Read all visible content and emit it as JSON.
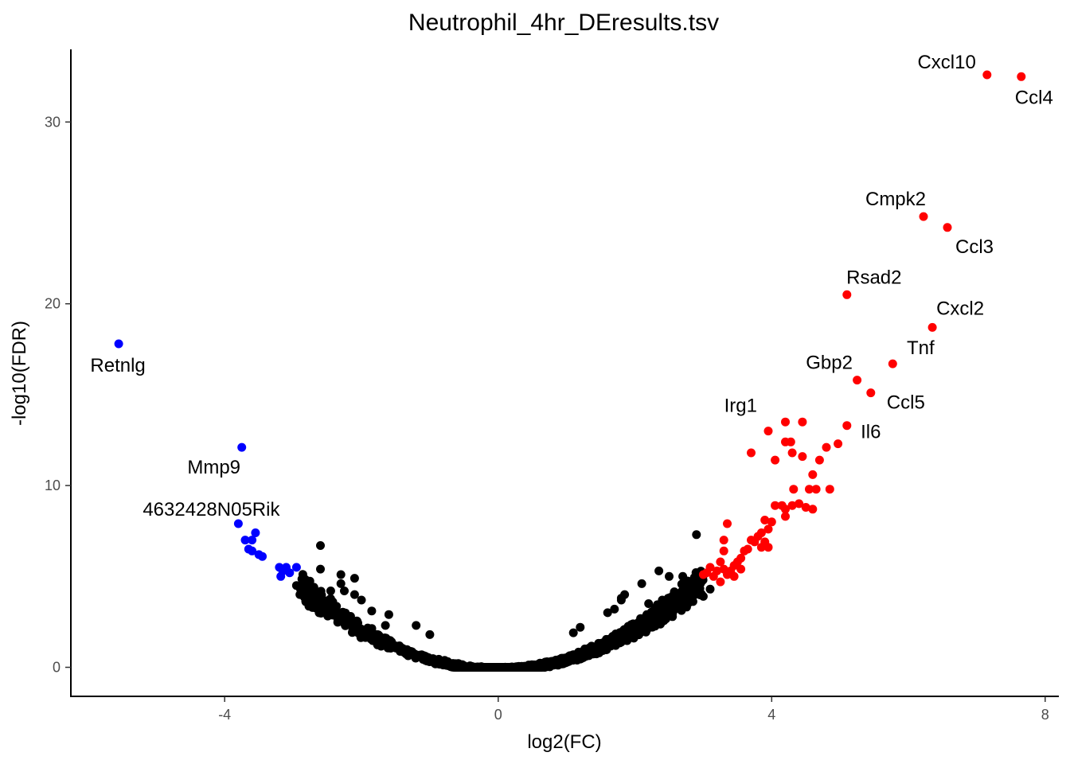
{
  "chart_data": {
    "type": "scatter",
    "title": "Neutrophil_4hr_DEresults.tsv",
    "xlabel": "log2(FC)",
    "ylabel": "-log10(FDR)",
    "xlim": [
      -6.25,
      8.2
    ],
    "ylim": [
      -1.6,
      34.0
    ],
    "x_ticks": [
      -4,
      0,
      4,
      8
    ],
    "y_ticks": [
      0,
      10,
      20,
      30
    ],
    "grid": false,
    "legend": "none",
    "colors": {
      "up": "#ff0000",
      "down": "#0000ff",
      "ns": "#000000"
    },
    "labeled_genes": [
      {
        "name": "Cxcl10",
        "x": 7.15,
        "y": 32.6,
        "color": "up"
      },
      {
        "name": "Ccl4",
        "x": 7.65,
        "y": 32.5,
        "color": "up"
      },
      {
        "name": "Cmpk2",
        "x": 6.22,
        "y": 24.8,
        "color": "up"
      },
      {
        "name": "Ccl3",
        "x": 6.57,
        "y": 24.2,
        "color": "up"
      },
      {
        "name": "Rsad2",
        "x": 5.1,
        "y": 20.5,
        "color": "up"
      },
      {
        "name": "Cxcl2",
        "x": 6.35,
        "y": 18.7,
        "color": "up"
      },
      {
        "name": "Tnf",
        "x": 5.77,
        "y": 16.7,
        "color": "up"
      },
      {
        "name": "Gbp2",
        "x": 5.25,
        "y": 15.8,
        "color": "up"
      },
      {
        "name": "Ccl5",
        "x": 5.45,
        "y": 15.1,
        "color": "up"
      },
      {
        "name": "Irg1",
        "x": 3.95,
        "y": 13.0,
        "color": "up"
      },
      {
        "name": "Il6",
        "x": 5.1,
        "y": 13.3,
        "color": "up"
      },
      {
        "name": "Retnlg",
        "x": -5.55,
        "y": 17.8,
        "color": "down"
      },
      {
        "name": "Mmp9",
        "x": -3.75,
        "y": 12.1,
        "color": "down"
      },
      {
        "name": "4632428N05Rik",
        "x": -3.8,
        "y": 7.9,
        "color": "down"
      }
    ],
    "up_points": [
      [
        4.2,
        13.5
      ],
      [
        4.45,
        13.5
      ],
      [
        4.2,
        12.4
      ],
      [
        4.28,
        12.4
      ],
      [
        3.7,
        11.8
      ],
      [
        4.3,
        11.8
      ],
      [
        4.05,
        11.4
      ],
      [
        4.45,
        11.6
      ],
      [
        4.8,
        12.1
      ],
      [
        4.97,
        12.3
      ],
      [
        4.7,
        11.4
      ],
      [
        4.6,
        10.6
      ],
      [
        4.85,
        9.8
      ],
      [
        4.55,
        9.8
      ],
      [
        4.65,
        9.8
      ],
      [
        4.32,
        9.8
      ],
      [
        4.05,
        8.9
      ],
      [
        4.15,
        8.9
      ],
      [
        4.3,
        8.9
      ],
      [
        4.4,
        9.0
      ],
      [
        4.2,
        8.7
      ],
      [
        4.5,
        8.8
      ],
      [
        4.6,
        8.7
      ],
      [
        4.2,
        8.3
      ],
      [
        3.9,
        8.1
      ],
      [
        4.0,
        8.0
      ],
      [
        3.95,
        7.6
      ],
      [
        3.8,
        7.2
      ],
      [
        3.85,
        7.4
      ],
      [
        3.7,
        7.0
      ],
      [
        3.75,
        6.9
      ],
      [
        3.9,
        6.9
      ],
      [
        3.95,
        6.6
      ],
      [
        3.85,
        6.6
      ],
      [
        3.6,
        6.4
      ],
      [
        3.65,
        6.5
      ],
      [
        3.55,
        6.0
      ],
      [
        3.5,
        5.8
      ],
      [
        3.45,
        5.6
      ],
      [
        3.55,
        5.4
      ],
      [
        3.4,
        5.3
      ],
      [
        3.25,
        5.8
      ],
      [
        3.3,
        5.4
      ],
      [
        3.2,
        5.3
      ],
      [
        3.15,
        5.0
      ],
      [
        3.05,
        5.2
      ],
      [
        3.0,
        5.1
      ],
      [
        3.1,
        5.5
      ],
      [
        3.35,
        5.1
      ],
      [
        3.25,
        4.7
      ],
      [
        3.45,
        5.0
      ],
      [
        3.3,
        6.4
      ],
      [
        3.3,
        7.0
      ],
      [
        3.35,
        7.9
      ]
    ],
    "down_points": [
      [
        -3.55,
        7.4
      ],
      [
        -3.6,
        7.0
      ],
      [
        -3.6,
        6.4
      ],
      [
        -3.5,
        6.2
      ],
      [
        -3.45,
        6.1
      ],
      [
        -3.2,
        5.5
      ],
      [
        -3.15,
        5.3
      ],
      [
        -3.18,
        5.0
      ],
      [
        -3.1,
        5.5
      ],
      [
        -3.05,
        5.2
      ],
      [
        -2.95,
        5.5
      ],
      [
        -3.7,
        7.0
      ],
      [
        -3.65,
        6.5
      ]
    ],
    "ns_points": [
      [
        -2.6,
        6.7
      ],
      [
        -2.6,
        5.4
      ],
      [
        -2.3,
        5.1
      ],
      [
        -2.1,
        4.9
      ],
      [
        -2.3,
        4.6
      ],
      [
        -2.45,
        4.2
      ],
      [
        -2.25,
        4.2
      ],
      [
        -2.5,
        3.6
      ],
      [
        -2.7,
        4.1
      ],
      [
        -2.8,
        4.3
      ],
      [
        -2.95,
        4.5
      ],
      [
        -2.9,
        4.0
      ],
      [
        -2.75,
        3.5
      ],
      [
        -2.1,
        4.0
      ],
      [
        -2.0,
        3.7
      ],
      [
        -1.85,
        3.1
      ],
      [
        -1.6,
        2.9
      ],
      [
        -1.2,
        2.3
      ],
      [
        -1.0,
        1.8
      ],
      [
        -1.65,
        2.3
      ],
      [
        2.9,
        7.3
      ],
      [
        2.7,
        5.0
      ],
      [
        2.75,
        4.6
      ],
      [
        2.5,
        5.0
      ],
      [
        2.35,
        5.3
      ],
      [
        2.1,
        4.6
      ],
      [
        1.85,
        4.0
      ],
      [
        1.8,
        3.7
      ],
      [
        1.8,
        3.8
      ],
      [
        1.7,
        3.2
      ],
      [
        1.6,
        3.0
      ],
      [
        1.2,
        2.2
      ],
      [
        1.1,
        1.9
      ],
      [
        2.8,
        4.4
      ],
      [
        3.0,
        3.9
      ],
      [
        3.1,
        4.3
      ],
      [
        2.4,
        3.7
      ],
      [
        2.2,
        3.5
      ],
      [
        2.6,
        3.4
      ]
    ]
  }
}
